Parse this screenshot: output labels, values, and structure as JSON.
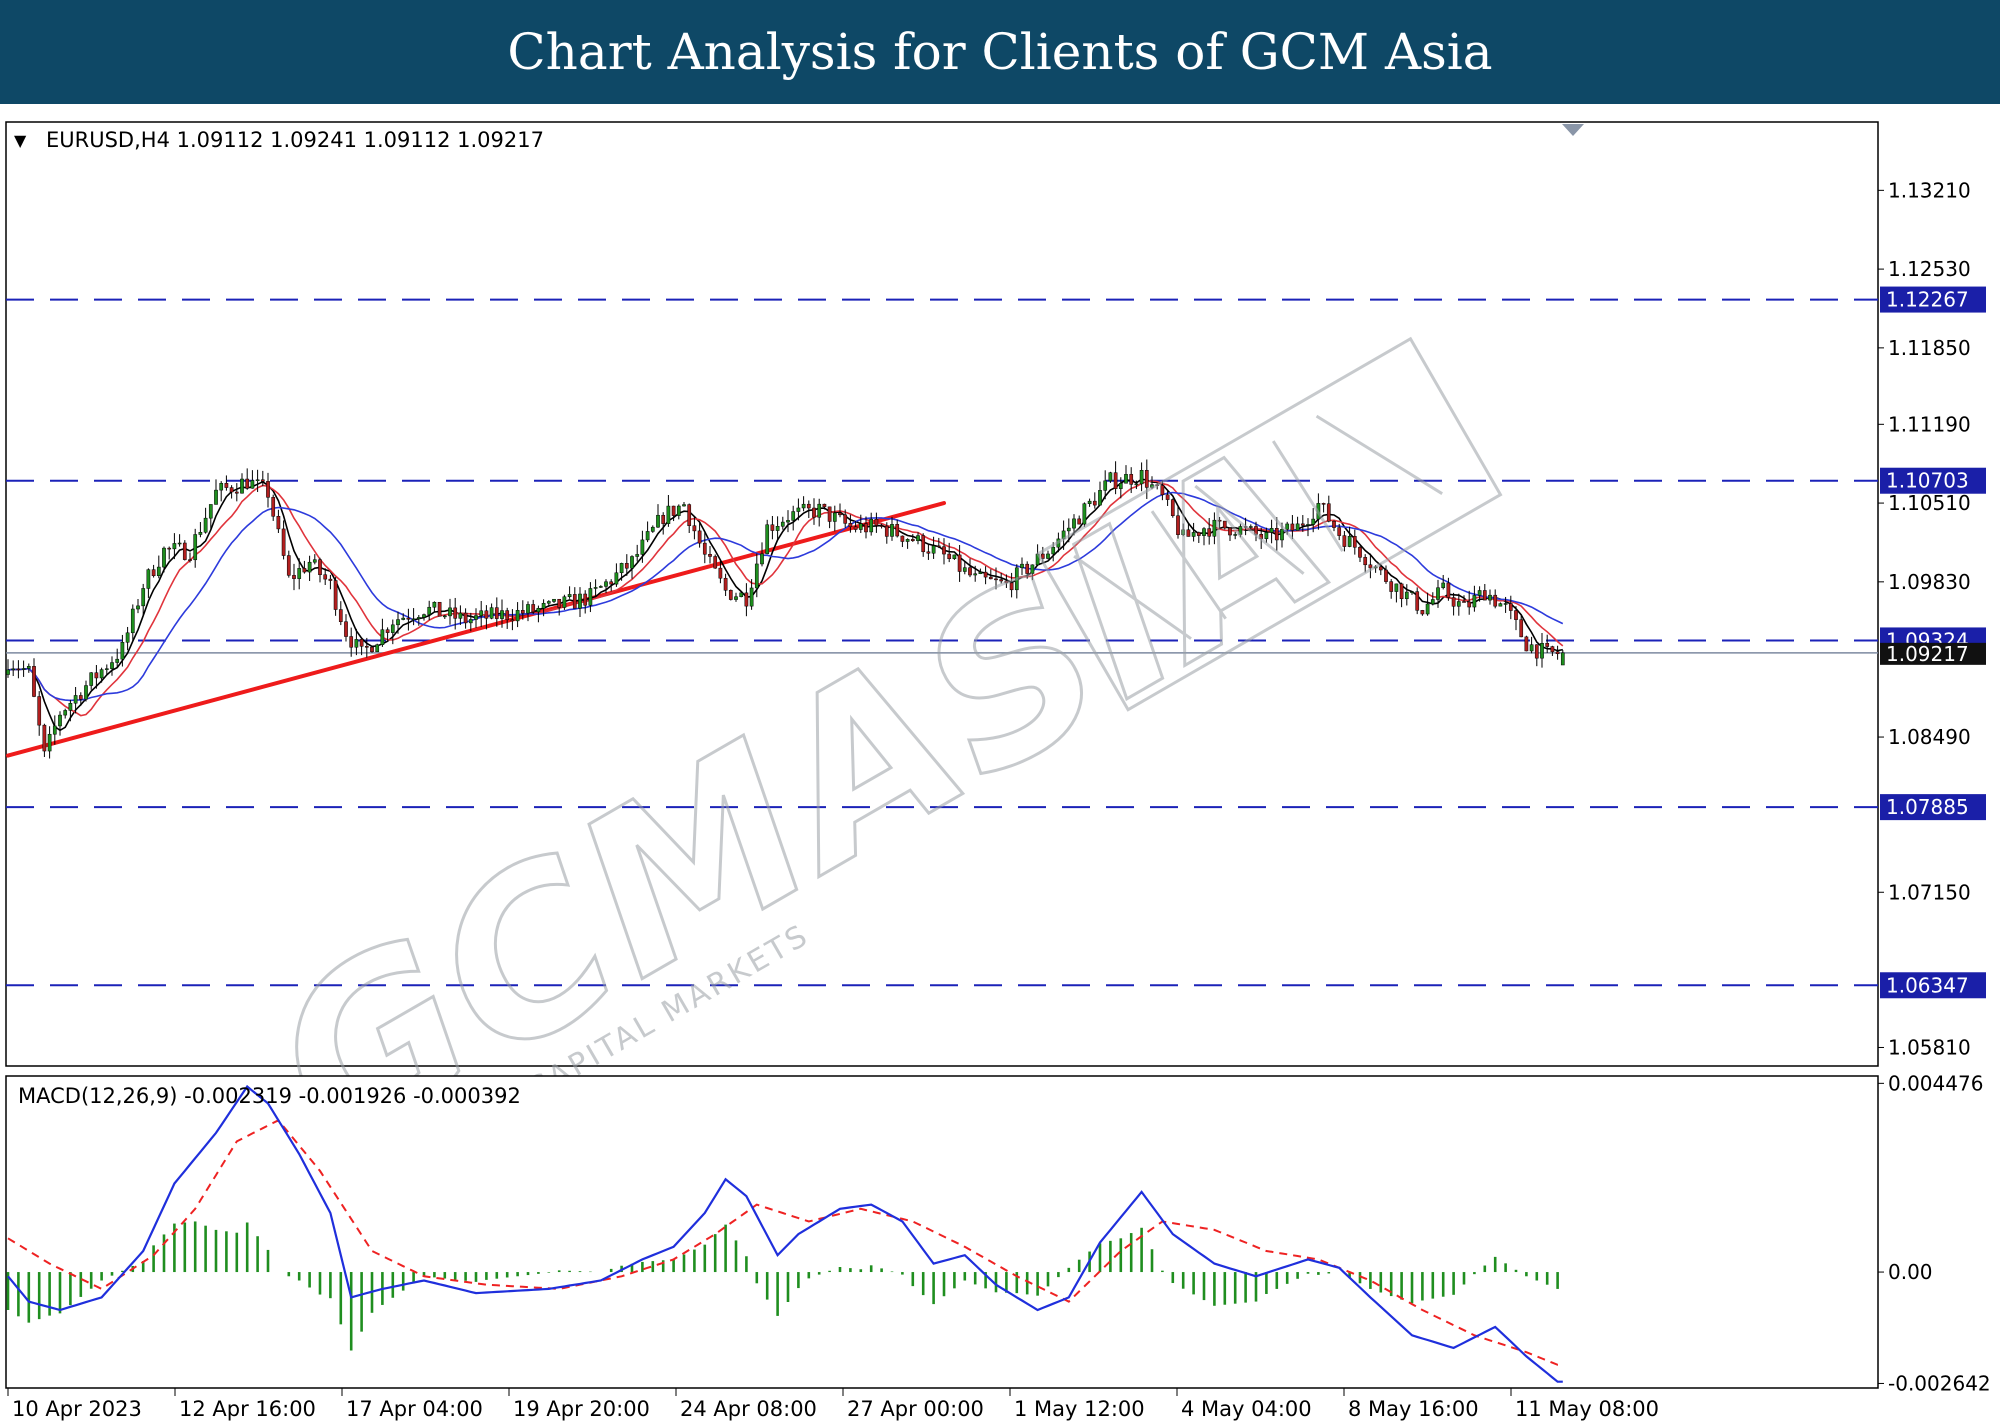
{
  "banner": {
    "title": "Chart Analysis for Clients of GCM Asia"
  },
  "colors": {
    "banner": "#0e4866",
    "bull_candle": "#1e8e1e",
    "bear_candle": "#b11f1f",
    "ma_fast": "#000000",
    "ma_mid": "#e0343c",
    "ma_slow": "#2d3bdc",
    "levels": "#1b22b8",
    "trendline": "#ee1b1b",
    "macd_line": "#1f2fdc",
    "macd_signal": "#ee2222",
    "macd_hist": "#1f8e1f",
    "label_box": "#1a1fa8",
    "current_price": "#111111"
  },
  "chart_data": [
    {
      "type": "candlestick",
      "header": {
        "arrow": "▼",
        "text": "EURUSD,H4  1.09112 1.09241 1.09112 1.09217"
      },
      "ylim": [
        1.0565,
        1.138
      ],
      "y_ticks": [
        "1.13210",
        "1.12530",
        "1.11850",
        "1.11190",
        "1.10510",
        "1.09830",
        "1.08490",
        "1.07150",
        "1.05810"
      ],
      "x_ticks": [
        "10 Apr 2023",
        "12 Apr 16:00",
        "17 Apr 04:00",
        "19 Apr 20:00",
        "24 Apr 08:00",
        "27 Apr 00:00",
        "1 May 12:00",
        "4 May 04:00",
        "8 May 16:00",
        "11 May 08:00"
      ],
      "levels": [
        {
          "value": 1.12267,
          "label": "1.12267"
        },
        {
          "value": 1.10703,
          "label": "1.10703"
        },
        {
          "value": 1.09324,
          "label": "1.09324"
        },
        {
          "value": 1.07885,
          "label": "1.07885"
        },
        {
          "value": 1.06347,
          "label": "1.06347"
        }
      ],
      "current_price": {
        "value": 1.09217,
        "label": "1.09217"
      },
      "trendline": {
        "from": {
          "bar": 0,
          "price": 1.0833
        },
        "to": {
          "bar": 180,
          "price": 1.1051
        }
      },
      "path": [
        [
          0,
          1.0915
        ],
        [
          4,
          1.0905
        ],
        [
          7,
          1.0832
        ],
        [
          10,
          1.087
        ],
        [
          16,
          1.0898
        ],
        [
          22,
          1.0925
        ],
        [
          26,
          1.098
        ],
        [
          30,
          1.101
        ],
        [
          35,
          1.101
        ],
        [
          40,
          1.106
        ],
        [
          46,
          1.107
        ],
        [
          50,
          1.106
        ],
        [
          54,
          1.0985
        ],
        [
          58,
          1.1
        ],
        [
          62,
          1.098
        ],
        [
          65,
          1.094
        ],
        [
          68,
          1.092
        ],
        [
          74,
          1.095
        ],
        [
          80,
          1.096
        ],
        [
          88,
          1.095
        ],
        [
          96,
          1.0955
        ],
        [
          104,
          1.096
        ],
        [
          112,
          1.097
        ],
        [
          120,
          1.1
        ],
        [
          126,
          1.104
        ],
        [
          130,
          1.105
        ],
        [
          134,
          1.1005
        ],
        [
          138,
          1.0975
        ],
        [
          142,
          1.097
        ],
        [
          146,
          1.103
        ],
        [
          150,
          1.104
        ],
        [
          156,
          1.1045
        ],
        [
          162,
          1.103
        ],
        [
          168,
          1.103
        ],
        [
          174,
          1.102
        ],
        [
          180,
          1.1005
        ],
        [
          186,
          1.0985
        ],
        [
          192,
          1.098
        ],
        [
          196,
          1.0995
        ],
        [
          200,
          1.101
        ],
        [
          206,
          1.104
        ],
        [
          212,
          1.107
        ],
        [
          218,
          1.1075
        ],
        [
          222,
          1.1055
        ],
        [
          226,
          1.102
        ],
        [
          230,
          1.103
        ],
        [
          236,
          1.103
        ],
        [
          242,
          1.102
        ],
        [
          248,
          1.103
        ],
        [
          252,
          1.105
        ],
        [
          256,
          1.1025
        ],
        [
          260,
          1.101
        ],
        [
          264,
          1.099
        ],
        [
          268,
          1.0975
        ],
        [
          272,
          1.096
        ],
        [
          276,
          1.0975
        ],
        [
          280,
          1.096
        ],
        [
          284,
          1.0975
        ],
        [
          288,
          1.096
        ],
        [
          292,
          1.093
        ],
        [
          296,
          1.092
        ],
        [
          299,
          1.0922
        ]
      ],
      "ma": [
        {
          "name": "fast",
          "period": 5
        },
        {
          "name": "mid",
          "period": 10
        },
        {
          "name": "slow",
          "period": 20
        }
      ]
    },
    {
      "type": "macd",
      "header": {
        "text": "MACD(12,26,9) -0.002319 -0.001926 -0.000392"
      },
      "ylim": [
        -0.00275,
        0.00465
      ],
      "y_ticks": [
        {
          "value": 0.004476,
          "label": "0.004476"
        },
        {
          "value": 0.0,
          "label": "0.00"
        },
        {
          "value": -0.002642,
          "label": "-0.002642"
        }
      ],
      "macd_path": [
        [
          0,
          -0.0001
        ],
        [
          4,
          -0.0007
        ],
        [
          10,
          -0.0009
        ],
        [
          18,
          -0.0006
        ],
        [
          26,
          0.0005
        ],
        [
          32,
          0.0021
        ],
        [
          40,
          0.0033
        ],
        [
          46,
          0.0044
        ],
        [
          50,
          0.004
        ],
        [
          56,
          0.0028
        ],
        [
          62,
          0.0014
        ],
        [
          66,
          -0.0006
        ],
        [
          72,
          -0.0004
        ],
        [
          80,
          -0.0002
        ],
        [
          90,
          -0.0005
        ],
        [
          104,
          -0.0004
        ],
        [
          114,
          -0.0002
        ],
        [
          122,
          0.0003
        ],
        [
          128,
          0.0006
        ],
        [
          134,
          0.0014
        ],
        [
          138,
          0.0022
        ],
        [
          142,
          0.0018
        ],
        [
          148,
          0.0004
        ],
        [
          152,
          0.0009
        ],
        [
          160,
          0.0015
        ],
        [
          166,
          0.0016
        ],
        [
          172,
          0.0012
        ],
        [
          178,
          0.0002
        ],
        [
          184,
          0.0004
        ],
        [
          190,
          -0.0003
        ],
        [
          198,
          -0.0009
        ],
        [
          204,
          -0.0006
        ],
        [
          210,
          0.0007
        ],
        [
          218,
          0.0019
        ],
        [
          224,
          0.0009
        ],
        [
          232,
          0.0002
        ],
        [
          240,
          -0.0001
        ],
        [
          250,
          0.0003
        ],
        [
          256,
          0.0001
        ],
        [
          262,
          -0.0006
        ],
        [
          270,
          -0.0015
        ],
        [
          278,
          -0.0018
        ],
        [
          286,
          -0.0013
        ],
        [
          292,
          -0.002
        ],
        [
          298,
          -0.0026
        ]
      ],
      "signal_path": [
        [
          0,
          0.0008
        ],
        [
          8,
          0.0002
        ],
        [
          18,
          -0.0004
        ],
        [
          28,
          0.0004
        ],
        [
          36,
          0.0015
        ],
        [
          44,
          0.0031
        ],
        [
          52,
          0.0036
        ],
        [
          60,
          0.0024
        ],
        [
          70,
          0.0005
        ],
        [
          80,
          -0.0001
        ],
        [
          92,
          -0.0003
        ],
        [
          106,
          -0.0004
        ],
        [
          118,
          -0.0001
        ],
        [
          128,
          0.0003
        ],
        [
          136,
          0.0009
        ],
        [
          144,
          0.0016
        ],
        [
          154,
          0.0012
        ],
        [
          164,
          0.0015
        ],
        [
          174,
          0.0012
        ],
        [
          184,
          0.0006
        ],
        [
          194,
          -0.0001
        ],
        [
          204,
          -0.0007
        ],
        [
          214,
          0.0005
        ],
        [
          222,
          0.0012
        ],
        [
          232,
          0.001
        ],
        [
          242,
          0.0005
        ],
        [
          252,
          0.0003
        ],
        [
          262,
          -0.0002
        ],
        [
          272,
          -0.0009
        ],
        [
          282,
          -0.0015
        ],
        [
          292,
          -0.0019
        ],
        [
          298,
          -0.0022
        ]
      ]
    }
  ]
}
